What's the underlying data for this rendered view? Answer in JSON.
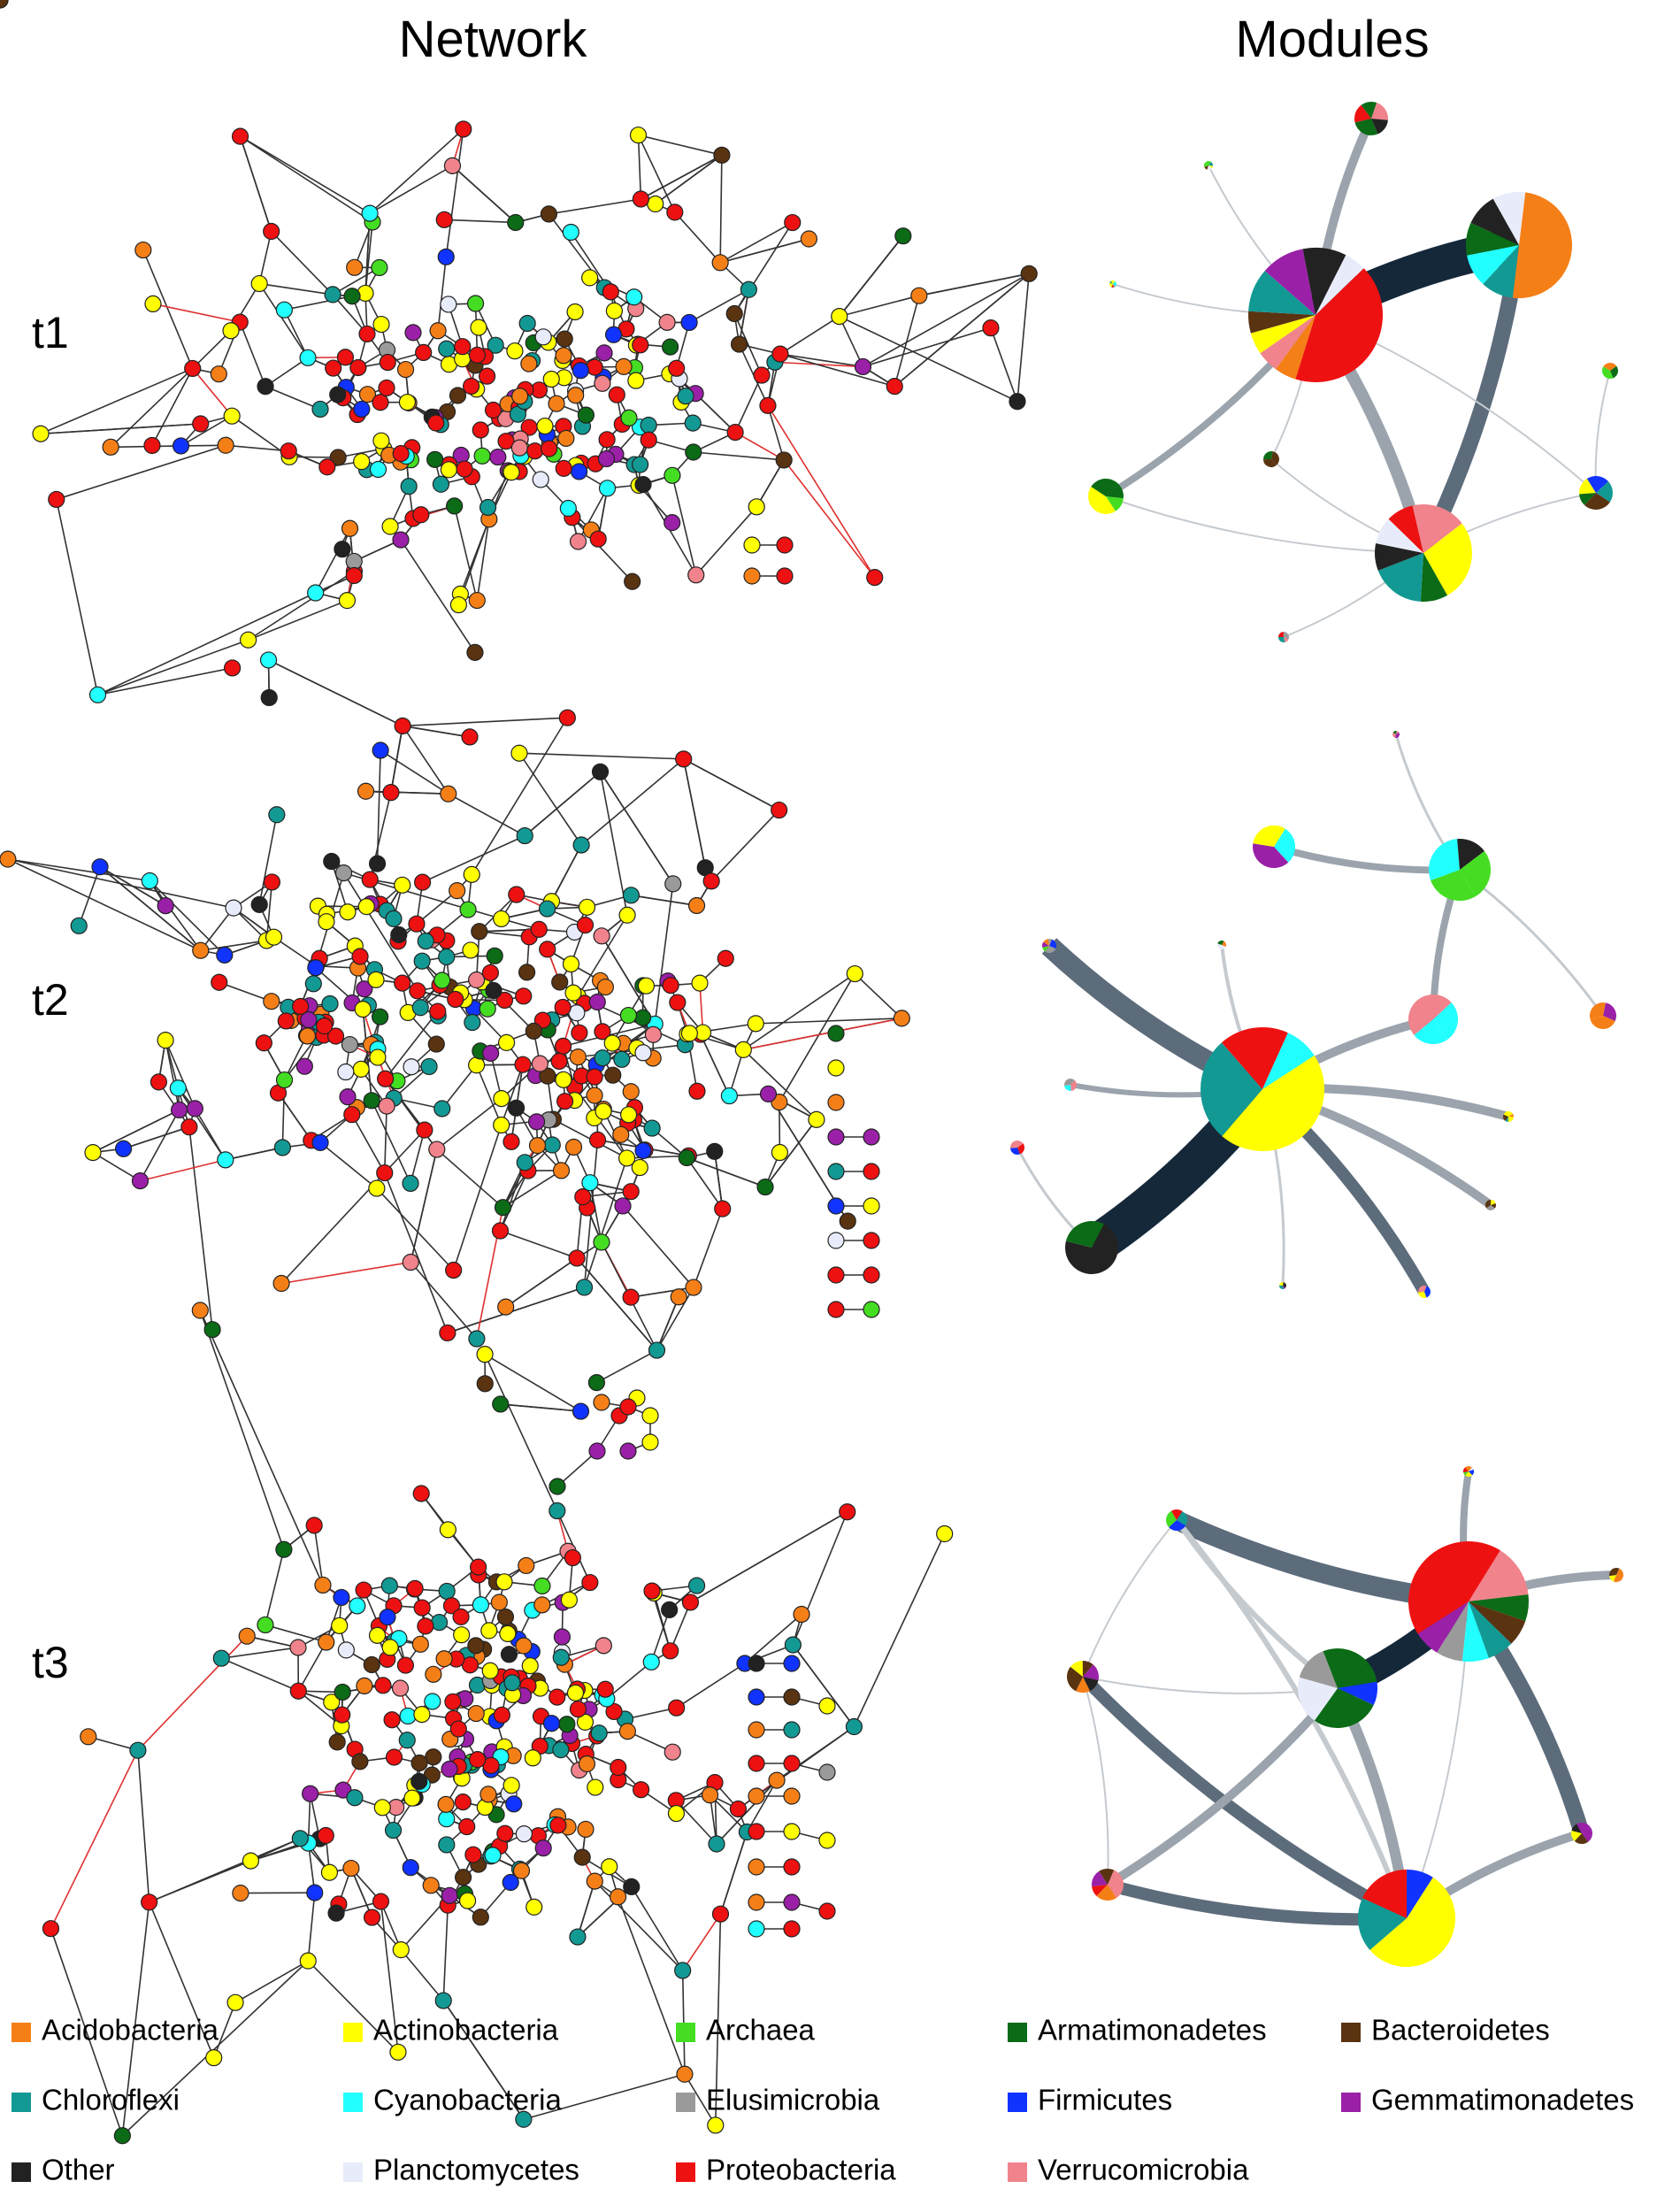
{
  "headers": [
    "Network",
    "Modules"
  ],
  "rows": [
    "t1",
    "t2",
    "t3"
  ],
  "legend": [
    {
      "name": "Acidobacteria",
      "color": "#f57f17"
    },
    {
      "name": "Actinobacteria",
      "color": "#ffff00"
    },
    {
      "name": "Archaea",
      "color": "#44dd22"
    },
    {
      "name": "Armatimonadetes",
      "color": "#0b6b16"
    },
    {
      "name": "Bacteroidetes",
      "color": "#5a3311"
    },
    {
      "name": "Chloroflexi",
      "color": "#139994"
    },
    {
      "name": "Cyanobacteria",
      "color": "#22ffff"
    },
    {
      "name": "Elusimicrobia",
      "color": "#9a9a9a"
    },
    {
      "name": "Firmicutes",
      "color": "#1133ff"
    },
    {
      "name": "Gemmatimonadetes",
      "color": "#9a20a8"
    },
    {
      "name": "Other",
      "color": "#222222"
    },
    {
      "name": "Planctomycetes",
      "color": "#e8ecfa"
    },
    {
      "name": "Proteobacteria",
      "color": "#ee1111"
    },
    {
      "name": "Verrucomicrobia",
      "color": "#f0838c"
    }
  ]
}
